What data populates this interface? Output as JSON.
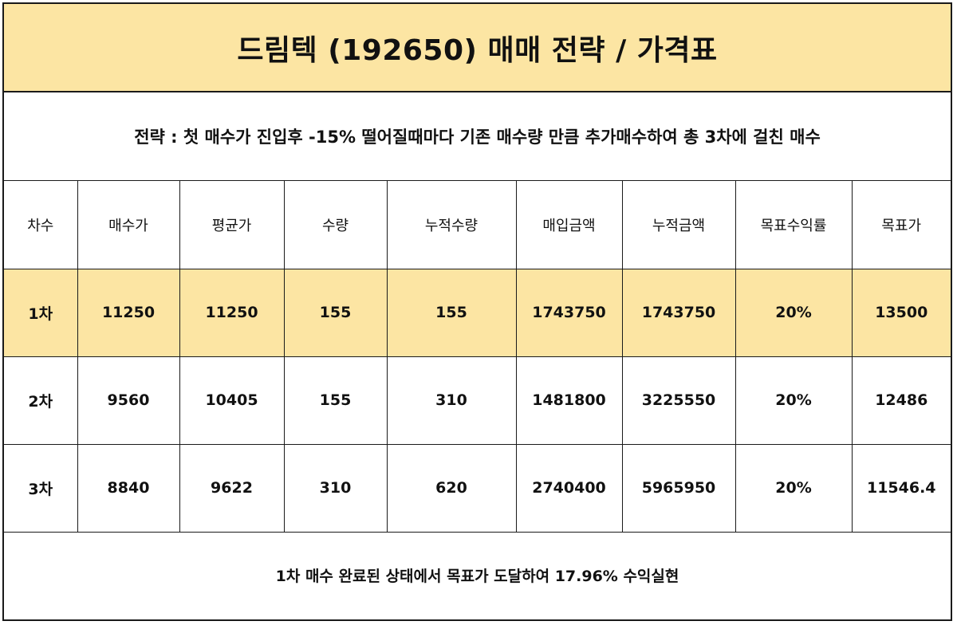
{
  "title": "드림텍 (192650) 매매 전략 / 가격표",
  "strategy": "전략 : 첫 매수가 진입후 -15% 떨어질때마다 기존 매수량 만큼 추가매수하여 총 3차에 걸친 매수",
  "table": {
    "headers": [
      "차수",
      "매수가",
      "평균가",
      "수량",
      "누적수량",
      "매입금액",
      "누적금액",
      "목표수익률",
      "목표가"
    ],
    "rows": [
      [
        "1차",
        "11250",
        "11250",
        "155",
        "155",
        "1743750",
        "1743750",
        "20%",
        "13500"
      ],
      [
        "2차",
        "9560",
        "10405",
        "155",
        "310",
        "1481800",
        "3225550",
        "20%",
        "12486"
      ],
      [
        "3차",
        "8840",
        "9622",
        "310",
        "620",
        "2740400",
        "5965950",
        "20%",
        "11546.4"
      ]
    ],
    "highlighted_row": 0
  },
  "footer": "1차 매수 완료된 상태에서 목표가 도달하여 17.96% 수익실현",
  "colors": {
    "highlight": "#fce5a3",
    "border": "#1a1a1a"
  }
}
